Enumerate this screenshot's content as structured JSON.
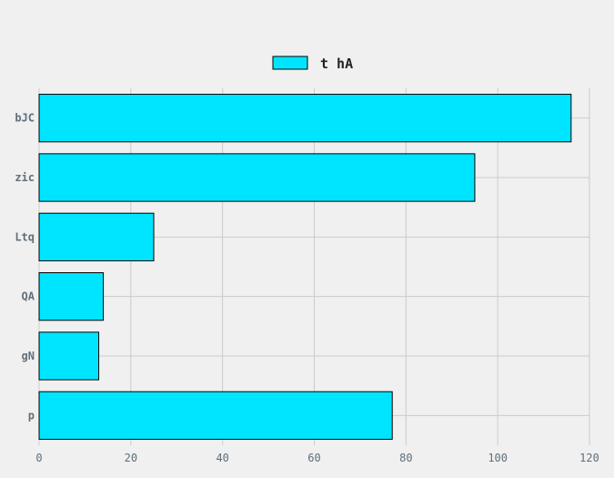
{
  "chart_data": {
    "type": "bar",
    "orientation": "horizontal",
    "categories": [
      "bJC",
      "zic",
      "Ltq",
      "QA",
      "gN",
      "p"
    ],
    "series": [
      {
        "name": "t hA",
        "values": [
          116,
          95,
          25,
          14,
          13,
          77
        ],
        "color": "#00e5ff"
      }
    ],
    "xlim": [
      0,
      120
    ],
    "xticks": [
      0,
      20,
      40,
      60,
      80,
      100,
      120
    ],
    "grid": true,
    "legend": "top-center",
    "colors": {
      "background": "#f0f0f0",
      "grid": "#cbcbcb",
      "tick_text": "#5f6f7a",
      "bar_edge": "#000000"
    }
  }
}
